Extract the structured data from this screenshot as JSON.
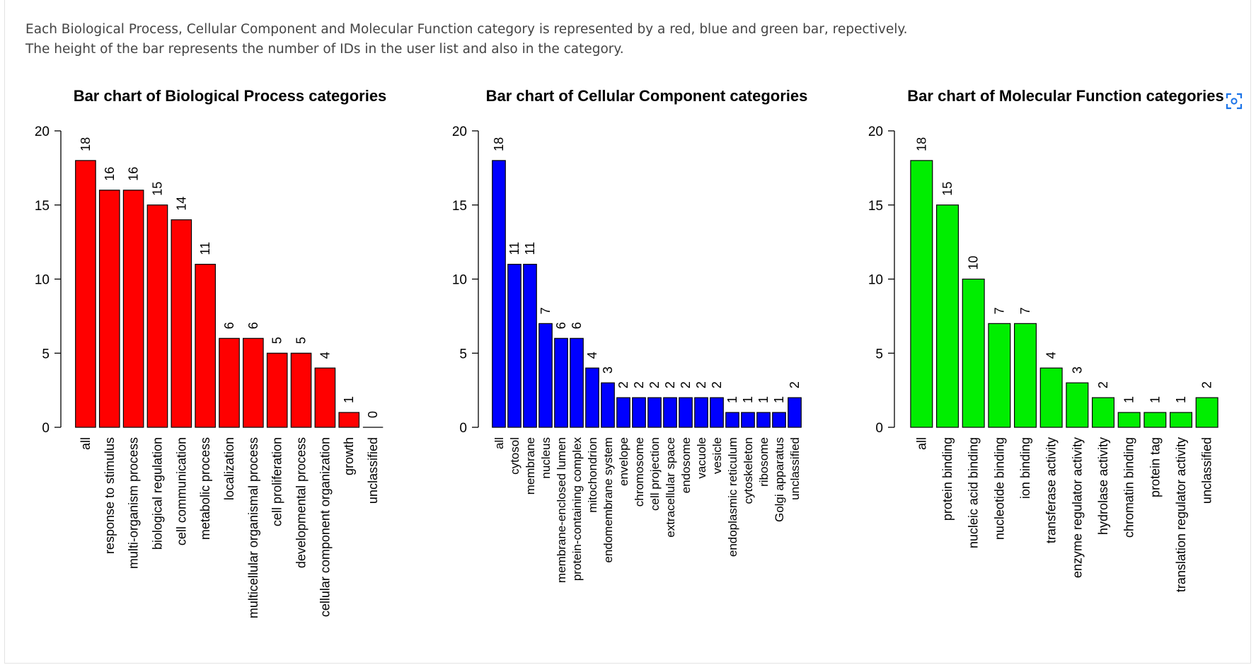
{
  "description": {
    "line1": "Each Biological Process, Cellular Component and Molecular Function category is represented by a red, blue and green bar, repectively.",
    "line2": "The height of the bar represents the number of IDs in the user list and also in the category."
  },
  "corner_icon": "scan-icon",
  "chart_data": [
    {
      "type": "bar",
      "title": "Bar chart of Biological Process categories",
      "color": "#ff0000",
      "ylim": [
        0,
        20
      ],
      "yticks": [
        0,
        5,
        10,
        15,
        20
      ],
      "categories": [
        "all",
        "response to stimulus",
        "multi-organism process",
        "biological regulation",
        "cell communication",
        "metabolic process",
        "localization",
        "multicellular organismal process",
        "cell proliferation",
        "developmental process",
        "cellular component organization",
        "growth",
        "unclassified"
      ],
      "values": [
        18,
        16,
        16,
        15,
        14,
        11,
        6,
        6,
        5,
        5,
        4,
        1,
        0
      ],
      "grid": false,
      "legend": "none"
    },
    {
      "type": "bar",
      "title": "Bar chart of Cellular Component categories",
      "color": "#0000ff",
      "ylim": [
        0,
        20
      ],
      "yticks": [
        0,
        5,
        10,
        15,
        20
      ],
      "categories": [
        "all",
        "cytosol",
        "membrane",
        "nucleus",
        "membrane-enclosed lumen",
        "protein-containing complex",
        "mitochondrion",
        "endomembrane system",
        "envelope",
        "chromosome",
        "cell projection",
        "extracellular space",
        "endosome",
        "vacuole",
        "vesicle",
        "endoplasmic reticulum",
        "cytoskeleton",
        "ribosome",
        "Golgi apparatus",
        "unclassified"
      ],
      "values": [
        18,
        11,
        11,
        7,
        6,
        6,
        4,
        3,
        2,
        2,
        2,
        2,
        2,
        2,
        2,
        1,
        1,
        1,
        1,
        2
      ],
      "grid": false,
      "legend": "none"
    },
    {
      "type": "bar",
      "title": "Bar chart of Molecular Function categories",
      "color": "#00ee00",
      "ylim": [
        0,
        20
      ],
      "yticks": [
        0,
        5,
        10,
        15,
        20
      ],
      "categories": [
        "all",
        "protein binding",
        "nucleic acid binding",
        "nucleotide binding",
        "ion binding",
        "transferase activity",
        "enzyme regulator activity",
        "hydrolase activity",
        "chromatin binding",
        "protein tag",
        "translation regulator activity",
        "unclassified"
      ],
      "values": [
        18,
        15,
        10,
        7,
        7,
        4,
        3,
        2,
        1,
        1,
        1,
        2
      ],
      "grid": false,
      "legend": "none"
    }
  ]
}
